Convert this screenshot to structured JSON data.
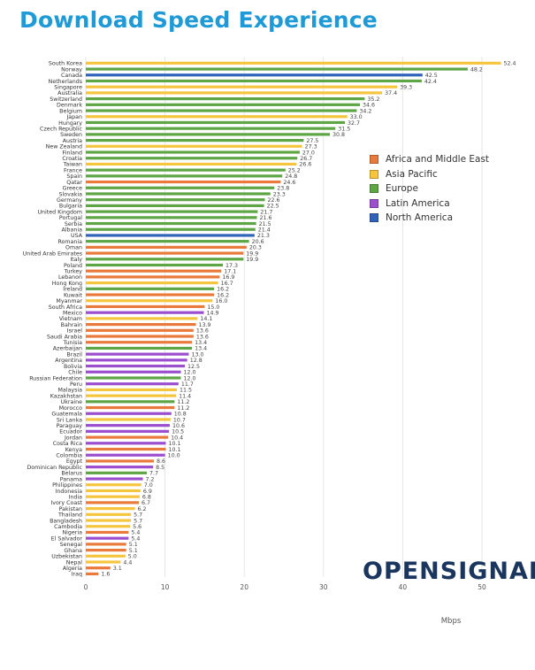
{
  "title": "Download Speed Experience",
  "logo_text": "OPENSIGNAL",
  "colors": {
    "Africa and Middle East": "#ea7a3b",
    "Asia Pacific": "#f6c53e",
    "Europe": "#5ea546",
    "Latin America": "#9b4fcf",
    "North America": "#3063ba"
  },
  "legend": [
    "Africa and Middle East",
    "Asia Pacific",
    "Europe",
    "Latin America",
    "North America"
  ],
  "chart_data": {
    "type": "bar",
    "orientation": "horizontal",
    "title": "Download Speed Experience",
    "xlabel": "Mbps",
    "xlim": [
      0,
      52.4
    ],
    "xticks": [
      0,
      10,
      20,
      30,
      40,
      50
    ],
    "grid": true,
    "legend_position": "right",
    "categories": [
      "South Korea",
      "Norway",
      "Canada",
      "Netherlands",
      "Singapore",
      "Australia",
      "Switzerland",
      "Denmark",
      "Belgium",
      "Japan",
      "Hungary",
      "Czech Republic",
      "Sweden",
      "Austria",
      "New Zealand",
      "Finland",
      "Croatia",
      "Taiwan",
      "France",
      "Spain",
      "Qatar",
      "Greece",
      "Slovakia",
      "Germany",
      "Bulgaria",
      "United Kingdom",
      "Portugal",
      "Serbia",
      "Albania",
      "USA",
      "Romania",
      "Oman",
      "United Arab Emirates",
      "Italy",
      "Poland",
      "Turkey",
      "Lebanon",
      "Hong Kong",
      "Ireland",
      "Kuwait",
      "Myanmar",
      "South Africa",
      "Mexico",
      "Vietnam",
      "Bahrain",
      "Israel",
      "Saudi Arabia",
      "Tunisia",
      "Azerbaijan",
      "Brazil",
      "Argentina",
      "Bolivia",
      "Chile",
      "Russian Federation",
      "Peru",
      "Malaysia",
      "Kazakhstan",
      "Ukraine",
      "Morocco",
      "Guatemala",
      "Sri Lanka",
      "Paraguay",
      "Ecuador",
      "Jordan",
      "Costa Rica",
      "Kenya",
      "Colombia",
      "Egypt",
      "Dominican Republic",
      "Belarus",
      "Panama",
      "Philippines",
      "Indonesia",
      "India",
      "Ivory Coast",
      "Pakistan",
      "Thailand",
      "Bangladesh",
      "Cambodia",
      "Nigeria",
      "El Salvador",
      "Senegal",
      "Ghana",
      "Uzbekistan",
      "Nepal",
      "Algeria",
      "Iraq"
    ],
    "values": [
      52.4,
      48.2,
      42.5,
      42.4,
      39.3,
      37.4,
      35.2,
      34.6,
      34.2,
      33.0,
      32.7,
      31.5,
      30.8,
      27.5,
      27.3,
      27.0,
      26.7,
      26.6,
      25.2,
      24.8,
      24.6,
      23.8,
      23.3,
      22.6,
      22.5,
      21.7,
      21.6,
      21.5,
      21.4,
      21.3,
      20.6,
      20.3,
      19.9,
      19.9,
      17.3,
      17.1,
      16.9,
      16.7,
      16.2,
      16.2,
      16.0,
      15.0,
      14.9,
      14.1,
      13.9,
      13.6,
      13.6,
      13.4,
      13.4,
      13.0,
      12.8,
      12.5,
      12.0,
      12.0,
      11.7,
      11.5,
      11.4,
      11.2,
      11.2,
      10.8,
      10.7,
      10.6,
      10.5,
      10.4,
      10.1,
      10.1,
      10.0,
      8.6,
      8.5,
      7.7,
      7.2,
      7.0,
      6.9,
      6.8,
      6.7,
      6.2,
      5.7,
      5.7,
      5.6,
      5.4,
      5.4,
      5.1,
      5.1,
      5.0,
      4.4,
      3.1,
      1.6
    ],
    "value_labels": [
      "52.4",
      "48.2",
      "42.5",
      "42.4",
      "39.3",
      "37.4",
      "35.2",
      "34.6",
      "34.2",
      "33.0",
      "32.7",
      "31.5",
      "30.8",
      "27.5",
      "27.3",
      "27.0",
      "26.7",
      "26.6",
      "25.2",
      "24.8",
      "24.6",
      "23.8",
      "23.3",
      "22.6",
      "22.5",
      "21.7",
      "21.6",
      "21.5",
      "21.4",
      "21.3",
      "20.6",
      "20.3",
      "19.9",
      "19.9",
      "17.3",
      "17.1",
      "16.9",
      "16.7",
      "16.2",
      "16.2",
      "16.0",
      "15.0",
      "14.9",
      "14.1",
      "13.9",
      "13.6",
      "13.6",
      "13.4",
      "13.4",
      "13.0",
      "12.8",
      "12.5",
      "12.0",
      "12.0",
      "11.7",
      "11.5",
      "11.4",
      "11.2",
      "11.2",
      "10.8",
      "10.7",
      "10.6",
      "10.5",
      "10.4",
      "10.1",
      "10.1",
      "10.0",
      "8.6",
      "8.5",
      "7.7",
      "7.2",
      "7.0",
      "6.9",
      "6.8",
      "6.7",
      "6.2",
      "5.7",
      "5.7",
      "5.6",
      "5.4",
      "5.4",
      "5.1",
      "5.1",
      "5.0",
      "4.4",
      "3.1",
      "1.6"
    ],
    "regions": [
      "Asia Pacific",
      "Europe",
      "North America",
      "Europe",
      "Asia Pacific",
      "Asia Pacific",
      "Europe",
      "Europe",
      "Europe",
      "Asia Pacific",
      "Europe",
      "Europe",
      "Europe",
      "Europe",
      "Asia Pacific",
      "Europe",
      "Europe",
      "Asia Pacific",
      "Europe",
      "Europe",
      "Africa and Middle East",
      "Europe",
      "Europe",
      "Europe",
      "Europe",
      "Europe",
      "Europe",
      "Europe",
      "Europe",
      "North America",
      "Europe",
      "Africa and Middle East",
      "Africa and Middle East",
      "Europe",
      "Europe",
      "Africa and Middle East",
      "Africa and Middle East",
      "Asia Pacific",
      "Europe",
      "Africa and Middle East",
      "Asia Pacific",
      "Africa and Middle East",
      "Latin America",
      "Asia Pacific",
      "Africa and Middle East",
      "Africa and Middle East",
      "Africa and Middle East",
      "Africa and Middle East",
      "Europe",
      "Latin America",
      "Latin America",
      "Latin America",
      "Latin America",
      "Europe",
      "Latin America",
      "Asia Pacific",
      "Asia Pacific",
      "Europe",
      "Africa and Middle East",
      "Latin America",
      "Asia Pacific",
      "Latin America",
      "Latin America",
      "Africa and Middle East",
      "Latin America",
      "Africa and Middle East",
      "Latin America",
      "Africa and Middle East",
      "Latin America",
      "Europe",
      "Latin America",
      "Asia Pacific",
      "Asia Pacific",
      "Asia Pacific",
      "Africa and Middle East",
      "Asia Pacific",
      "Asia Pacific",
      "Asia Pacific",
      "Asia Pacific",
      "Africa and Middle East",
      "Latin America",
      "Africa and Middle East",
      "Africa and Middle East",
      "Asia Pacific",
      "Asia Pacific",
      "Africa and Middle East",
      "Africa and Middle East"
    ]
  }
}
